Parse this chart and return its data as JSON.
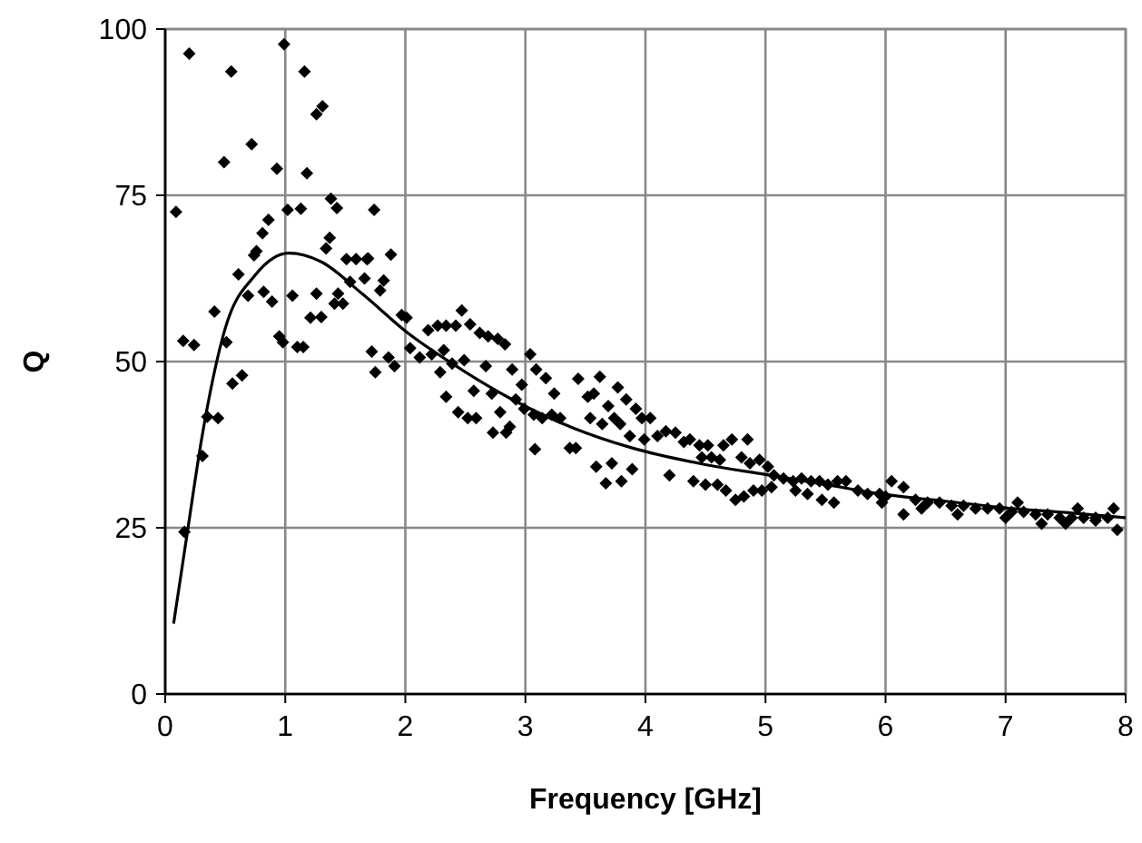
{
  "chart_data": {
    "type": "scatter",
    "xlabel": "Frequency [GHz]",
    "ylabel": "Q",
    "xlim": [
      0,
      8
    ],
    "ylim": [
      0,
      100
    ],
    "xticks": [
      0,
      1,
      2,
      3,
      4,
      5,
      6,
      7,
      8
    ],
    "yticks": [
      0,
      25,
      50,
      75,
      100
    ],
    "grid": true,
    "series": [
      {
        "color": "#000000",
        "marker": "diamond",
        "x": [
          0.2,
          0.55,
          0.99,
          1.16,
          1.31,
          1.26,
          0.72,
          0.49,
          0.93,
          1.18,
          0.09,
          1.02,
          1.13,
          1.38,
          1.43,
          1.74,
          0.86,
          0.81,
          0.76,
          0.74,
          1.37,
          1.34,
          0.61,
          1.51,
          1.59,
          1.68,
          0.69,
          0.82,
          0.89,
          1.06,
          1.26,
          1.44,
          1.54,
          1.66,
          1.41,
          1.48,
          0.41,
          1.21,
          1.3,
          0.95,
          0.98,
          1.1,
          1.15,
          0.15,
          0.24,
          0.51,
          1.75,
          0.56,
          0.64,
          0.16,
          0.31,
          0.35,
          0.44,
          1.69,
          1.88,
          1.82,
          1.79,
          1.97,
          2.01,
          1.72,
          1.86,
          1.91,
          2.04,
          2.12,
          2.19,
          2.27,
          2.34,
          2.42,
          2.47,
          2.54,
          2.62,
          2.69,
          2.77,
          2.83,
          2.22,
          2.32,
          2.39,
          2.49,
          2.67,
          2.29,
          2.34,
          2.44,
          2.57,
          2.72,
          2.52,
          2.59,
          2.79,
          2.87,
          2.73,
          2.84,
          2.89,
          2.97,
          3.04,
          3.09,
          3.17,
          3.24,
          2.92,
          2.99,
          3.07,
          3.14,
          3.22,
          3.29,
          3.08,
          3.37,
          3.42,
          3.44,
          3.52,
          3.57,
          3.62,
          3.54,
          3.64,
          3.69,
          3.77,
          3.84,
          3.59,
          3.67,
          3.72,
          3.8,
          3.74,
          3.79,
          3.92,
          3.97,
          4.04,
          3.87,
          3.99,
          4.1,
          4.17,
          4.25,
          4.32,
          4.37,
          4.45,
          4.52,
          4.65,
          4.72,
          4.85,
          3.89,
          4.2,
          4.4,
          4.5,
          4.6,
          4.67,
          4.75,
          4.82,
          4.9,
          4.97,
          4.47,
          4.55,
          4.62,
          4.8,
          4.87,
          4.95,
          5.02,
          5.07,
          5.15,
          5.23,
          5.3,
          5.38,
          5.45,
          5.52,
          5.6,
          5.67,
          5.05,
          5.25,
          5.35,
          5.47,
          5.57,
          5.77,
          5.85,
          5.95,
          5.97,
          6.05,
          6.15,
          6.15,
          6.0,
          6.25,
          6.35,
          6.45,
          6.55,
          6.65,
          6.75,
          6.85,
          6.95,
          7.05,
          7.15,
          7.25,
          7.35,
          7.45,
          7.55,
          7.65,
          7.75,
          7.85,
          7.93,
          6.3,
          6.6,
          7.0,
          7.3,
          7.5,
          7.75,
          7.9,
          7.1,
          7.6
        ],
        "values": [
          96.3,
          93.6,
          97.7,
          93.6,
          88.4,
          87.2,
          82.7,
          80,
          79,
          78.3,
          72.5,
          72.8,
          73,
          74.5,
          73.1,
          72.8,
          71.3,
          69.3,
          66.6,
          66,
          68.6,
          67,
          63.1,
          65.4,
          65.4,
          65.4,
          59.9,
          60.5,
          59,
          59.9,
          60.2,
          60.2,
          62,
          62.5,
          58.7,
          58.7,
          57.5,
          56.6,
          56.7,
          53.8,
          52.9,
          52.2,
          52.2,
          53.1,
          52.5,
          52.9,
          48.4,
          46.7,
          47.9,
          24.4,
          35.8,
          41.7,
          41.5,
          65.5,
          66.1,
          62.2,
          60.7,
          57,
          56.6,
          51.5,
          50.6,
          49.3,
          52,
          50.6,
          54.7,
          55.4,
          55.4,
          55.4,
          57.7,
          55.6,
          54.3,
          53.8,
          53.4,
          52.6,
          51.1,
          51.7,
          49.7,
          50.2,
          49.3,
          48.4,
          44.7,
          42.4,
          45.6,
          45.2,
          41.5,
          41.5,
          42.4,
          40.2,
          39.3,
          39.3,
          48.8,
          46.5,
          51.1,
          48.8,
          47.5,
          45.2,
          44.3,
          42.9,
          42,
          41.5,
          42,
          41.5,
          36.8,
          37,
          37,
          47.4,
          44.7,
          45.2,
          47.7,
          41.5,
          40.6,
          43.3,
          46.1,
          44.3,
          34.2,
          31.7,
          34.7,
          32,
          41.5,
          40.6,
          42.9,
          41.5,
          41.5,
          38.8,
          38.3,
          38.8,
          39.5,
          39.3,
          37.9,
          38.3,
          37.4,
          37.4,
          37.4,
          38.3,
          38.3,
          33.8,
          32.9,
          32,
          31.5,
          31.5,
          30.6,
          29.2,
          29.7,
          30.6,
          30.6,
          35.6,
          35.6,
          35.2,
          35.6,
          34.7,
          35.2,
          34.2,
          32.9,
          32.4,
          32,
          32.4,
          32,
          32,
          31.5,
          32,
          32,
          31.1,
          30.6,
          30.1,
          29.2,
          28.8,
          30.6,
          30.1,
          30.1,
          28.8,
          32,
          31.1,
          27,
          29.7,
          29.2,
          28.8,
          28.8,
          28.3,
          28.3,
          27.9,
          27.9,
          27.9,
          27.4,
          27.4,
          27,
          27,
          26.5,
          26.5,
          26.5,
          26.5,
          26.5,
          24.7,
          27.9,
          27,
          26.5,
          25.6,
          25.6,
          26.1,
          27.9,
          28.8,
          27.9
        ]
      },
      {
        "type": "line",
        "color": "#000000",
        "marker": "none",
        "line_style": "solid",
        "x": [
          0.07,
          0.19,
          0.3,
          0.5,
          0.75,
          1.03,
          1.3,
          1.64,
          2.02,
          2.39,
          2.89,
          3.4,
          3.89,
          4.5,
          5,
          5.5,
          6,
          6.5,
          7,
          7.5,
          8
        ],
        "values": [
          10.6,
          25,
          38,
          55,
          63,
          66.3,
          65,
          60.2,
          54.3,
          49.7,
          44.3,
          40,
          37,
          34.5,
          33,
          31.5,
          30,
          29,
          28,
          27.3,
          26.5
        ]
      }
    ]
  }
}
